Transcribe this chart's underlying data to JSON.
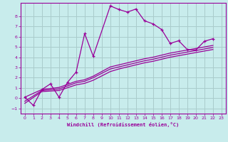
{
  "xlabel": "Windchill (Refroidissement éolien,°C)",
  "background_color": "#c8ecec",
  "line_color": "#990099",
  "grid_color": "#aacccc",
  "xlim": [
    -0.5,
    23.5
  ],
  "ylim": [
    -1.5,
    9.3
  ],
  "xticks": [
    0,
    1,
    2,
    3,
    4,
    5,
    6,
    7,
    8,
    9,
    10,
    11,
    12,
    13,
    14,
    15,
    16,
    17,
    18,
    19,
    20,
    21,
    22,
    23
  ],
  "yticks": [
    -1,
    0,
    1,
    2,
    3,
    4,
    5,
    6,
    7,
    8
  ],
  "main_x": [
    0,
    1,
    2,
    3,
    4,
    5,
    6,
    7,
    8,
    10,
    11,
    12,
    13,
    14,
    15,
    16,
    17,
    18,
    19,
    20,
    21,
    22
  ],
  "main_y": [
    0.1,
    -0.7,
    0.85,
    1.4,
    0.1,
    1.55,
    2.55,
    6.3,
    4.1,
    9.0,
    8.65,
    8.4,
    8.7,
    7.55,
    7.25,
    6.7,
    5.35,
    5.6,
    4.75,
    4.7,
    5.55,
    5.8
  ],
  "line1_x": [
    0,
    2,
    4,
    6,
    7,
    8,
    10,
    11,
    12,
    13,
    14,
    15,
    16,
    17,
    18,
    19,
    20,
    21,
    22
  ],
  "line1_y": [
    0.1,
    0.85,
    1.05,
    1.65,
    1.8,
    2.15,
    3.05,
    3.25,
    3.45,
    3.65,
    3.85,
    4.0,
    4.2,
    4.4,
    4.55,
    4.7,
    4.85,
    5.0,
    5.15
  ],
  "line2_x": [
    0,
    2,
    4,
    6,
    7,
    8,
    10,
    11,
    12,
    13,
    14,
    15,
    16,
    17,
    18,
    19,
    20,
    21,
    22
  ],
  "line2_y": [
    -0.3,
    0.75,
    0.9,
    1.5,
    1.65,
    2.0,
    2.85,
    3.05,
    3.25,
    3.45,
    3.65,
    3.8,
    4.0,
    4.2,
    4.35,
    4.5,
    4.65,
    4.8,
    4.95
  ],
  "line3_x": [
    0,
    2,
    4,
    6,
    7,
    8,
    10,
    11,
    12,
    13,
    14,
    15,
    16,
    17,
    18,
    19,
    20,
    21,
    22
  ],
  "line3_y": [
    -0.5,
    0.65,
    0.75,
    1.3,
    1.45,
    1.75,
    2.6,
    2.85,
    3.05,
    3.25,
    3.45,
    3.6,
    3.8,
    4.0,
    4.15,
    4.3,
    4.45,
    4.6,
    4.75
  ]
}
